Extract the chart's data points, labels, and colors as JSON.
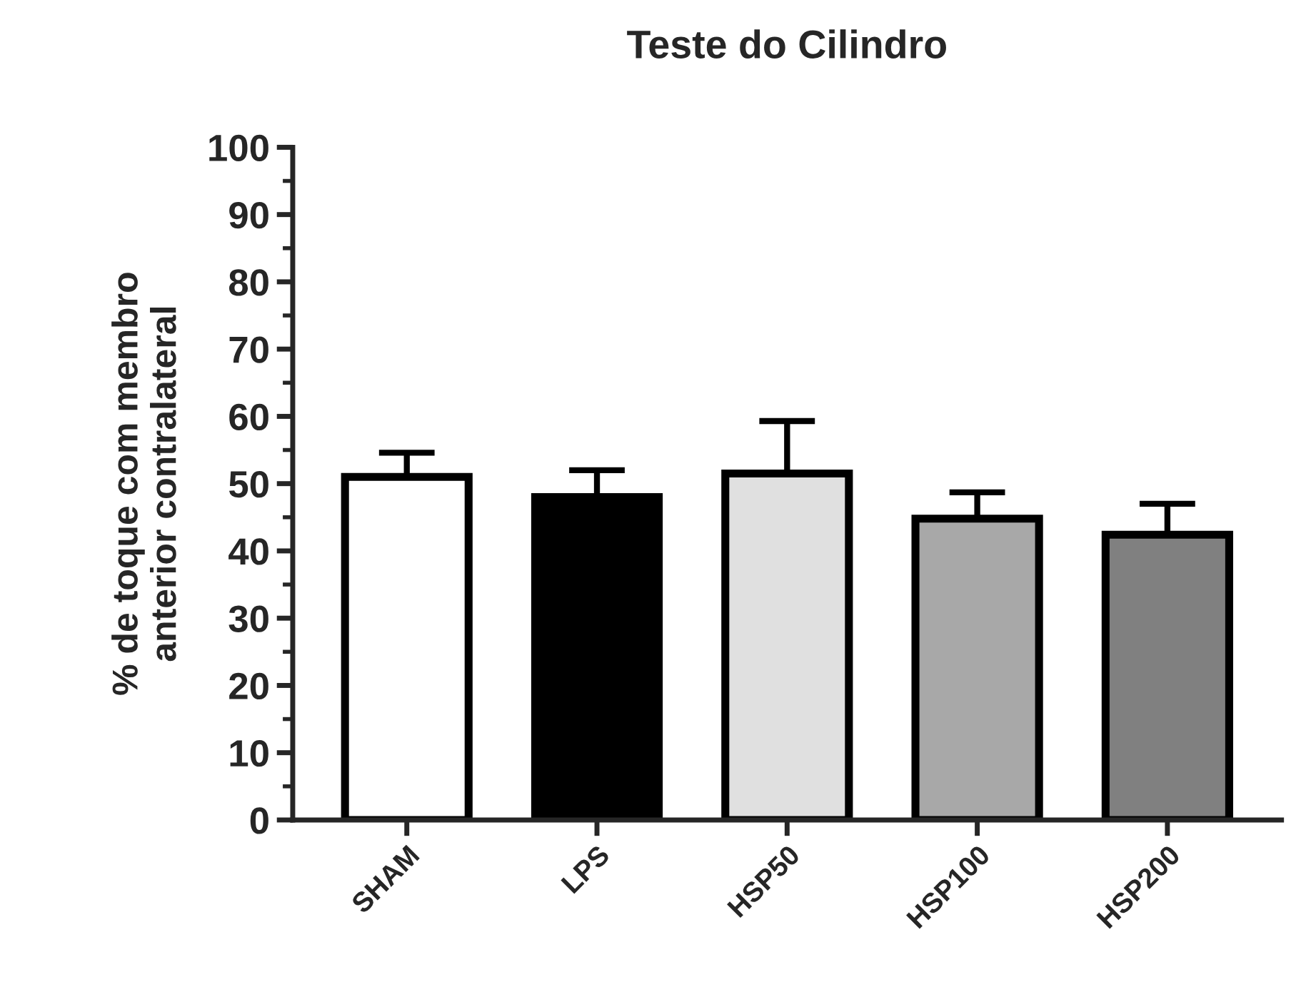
{
  "chart_data": {
    "type": "bar",
    "title": "Teste do Cilindro",
    "ylabel": "% de toque com membro\nanterior contralateral",
    "categories": [
      "SHAM",
      "LPS",
      "HSP50",
      "HSP100",
      "HSP200"
    ],
    "values": [
      51,
      48,
      51.5,
      44.8,
      42.4
    ],
    "colors": [
      "#ffffff",
      "#000000",
      "#e0e0e0",
      "#a8a8a8",
      "#808080"
    ],
    "errors": [
      3.6,
      4,
      7.8,
      3.9,
      4.6
    ],
    "ylim": [
      0,
      100
    ],
    "yticks": [
      0,
      10,
      20,
      30,
      40,
      50,
      60,
      70,
      80,
      90,
      100
    ],
    "grid": false,
    "legend": false
  }
}
